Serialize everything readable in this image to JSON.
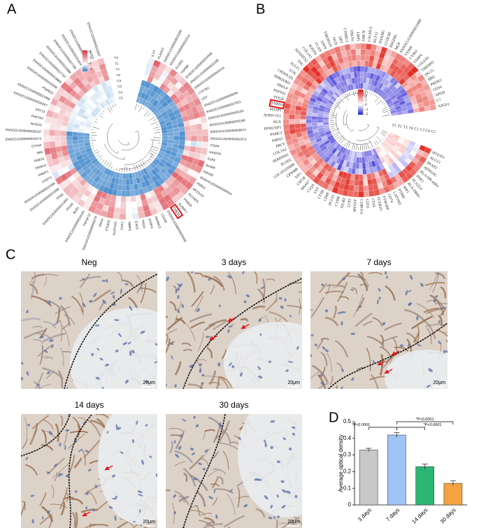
{
  "panels": {
    "A": {
      "label": "A",
      "legend_ticks": [
        2,
        1,
        0,
        -1
      ],
      "groups": [
        "T2",
        "T1",
        "T4",
        "T3",
        "C3",
        "C2",
        "C4",
        "C1"
      ],
      "genes": [
        "IL1A",
        "PLA2G2",
        "ENSOCUG00000023290",
        "ENSOCUG00000022514",
        "FCGR3",
        "HSPB8",
        "ENSOCUG00000024588",
        "ENSOCUG00000022188",
        "ENSOCUG00000001416",
        "CYP7B1",
        "CD7",
        "ENSOCUG00000009284",
        "ENSOCUG00000027021",
        "ENSOCUG00000009183",
        "ENSOCUG00000028166",
        "ENSOCUG00000009672",
        "ENSOCUG00000002973",
        "ITGA4",
        "HASPIN",
        "E2F8",
        "SCIMP",
        "HSH2D",
        "ENSOCUG00000000064",
        "PRR11",
        "MCOLN2",
        "DLGAP5",
        "PGBD5",
        "SLAMF7",
        "THBS4",
        "ENSOCUG00000025668",
        "CD248",
        "ADAM12",
        "SFRP4",
        "PKD2",
        "EXD3",
        "MMP3",
        "FGF1",
        "ALDH1A1",
        "PTGDS",
        "PRG4",
        "ENSOCUG00000005078",
        "TNFSF10",
        "ENSOCUG00000024181",
        "BLB1",
        "ITGAD",
        "ENSOCUG00000011883",
        "TPM2",
        "ENSOCUG00000021088",
        "ENSOCUG00000031584",
        "CHST3",
        "PRMT1",
        "TRIM14",
        "RAB19",
        "NMI",
        "CYP4F",
        "ENSOCUG00000024473",
        "ENSOCUG00000026197",
        "NUSGC",
        "PHETA2",
        "KRT14",
        "ENSOCUG00000026557",
        "ENSOCUG00000021966",
        "PSMB10",
        "ENSOCUG00000023308",
        "ENSOCUG00000023889",
        "ENSOCUG00000027787",
        "ENSOCUG00000022888",
        "ENSOCUG00000027780",
        "ENSOCUG00000022424",
        "ENSOCUG00000026196",
        "IATR2",
        "ENSOCUG00000023307"
      ]
    },
    "B": {
      "label": "B",
      "legend_ticks": [
        3,
        2,
        1,
        0,
        -1,
        -2
      ],
      "groups": [
        "C2",
        "C4",
        "C3",
        "C1",
        "T4",
        "T3",
        "T2",
        "T1"
      ],
      "genes": [
        "IFGGD1",
        "ALG12",
        "SKAP2",
        "ATP6V0C",
        "RLA-DR-alpha",
        "PDK1",
        "PLA2G4",
        "RLA-DRB1",
        "SPP1",
        "PTPRC",
        "LAPTM5",
        "CD74",
        "TYROBP",
        "FCER1G",
        "CTSS",
        "CD53",
        "CORO1A",
        "MYO1F",
        "LCP2",
        "ITGB2",
        "CYBB",
        "HCLS1",
        "CD68",
        "CTSB",
        "LYZ",
        "C1QA",
        "MS4A7",
        "CSF1R",
        "AIF1",
        "GPNMB",
        "LOC103350808",
        "PLOD2",
        "SERPINH1",
        "COL1A2",
        "PRC9",
        "P4HA1",
        "PSMC3",
        "EPM2AIP1",
        "AGA",
        "ATP6V1G1",
        "MASP1",
        "THBS4",
        "POGK",
        "PAPSS2",
        "PRELP",
        "SHROOM3",
        "CRISPLD2",
        "LOX",
        "SULF1",
        "TNC",
        "ADAMTS2",
        "COL3A1",
        "POSTN",
        "VCAN",
        "ASPN",
        "TMEM119",
        "OGN",
        "DPT",
        "CTHRC1",
        "FBLN1",
        "GBP5",
        "EMCN",
        "CALML6",
        "KLF12",
        "DNAJB5",
        "CCDC80",
        "PDGFRL",
        "MGP",
        "ENSOCUG00000031688",
        "TXNIP",
        "CYR61",
        "FABP4",
        "COL6A6",
        "TMEM92",
        "ISG15",
        "HBZ",
        "PRDX2",
        "CD36",
        "APOD",
        "C7",
        "AZGP1"
      ]
    },
    "C": {
      "label": "C",
      "images": [
        {
          "title": "Neg",
          "scale": "20μm"
        },
        {
          "title": "3 days",
          "scale": "20μm"
        },
        {
          "title": "7 days",
          "scale": "20μm"
        },
        {
          "title": "14 days",
          "scale": "20μm"
        },
        {
          "title": "30 days",
          "scale": "20μm"
        }
      ]
    },
    "D": {
      "label": "D",
      "chart_data": {
        "type": "bar",
        "ylabel": "Average optical density",
        "categories": [
          "3 days",
          "7 days",
          "14 days",
          "30 days"
        ],
        "values": [
          0.33,
          0.42,
          0.23,
          0.13
        ],
        "errors": [
          0.01,
          0.015,
          0.015,
          0.015
        ],
        "colors": [
          "#c8c8c8",
          "#9ec5f5",
          "#2bb673",
          "#f4a340"
        ],
        "ylim": [
          0,
          0.5
        ],
        "yticks": [
          0,
          0.1,
          0.2,
          0.3,
          0.4,
          0.5
        ],
        "annotations": [
          "*P<0.0001",
          "*P<0.0001",
          "*P<0.0001"
        ]
      }
    }
  }
}
